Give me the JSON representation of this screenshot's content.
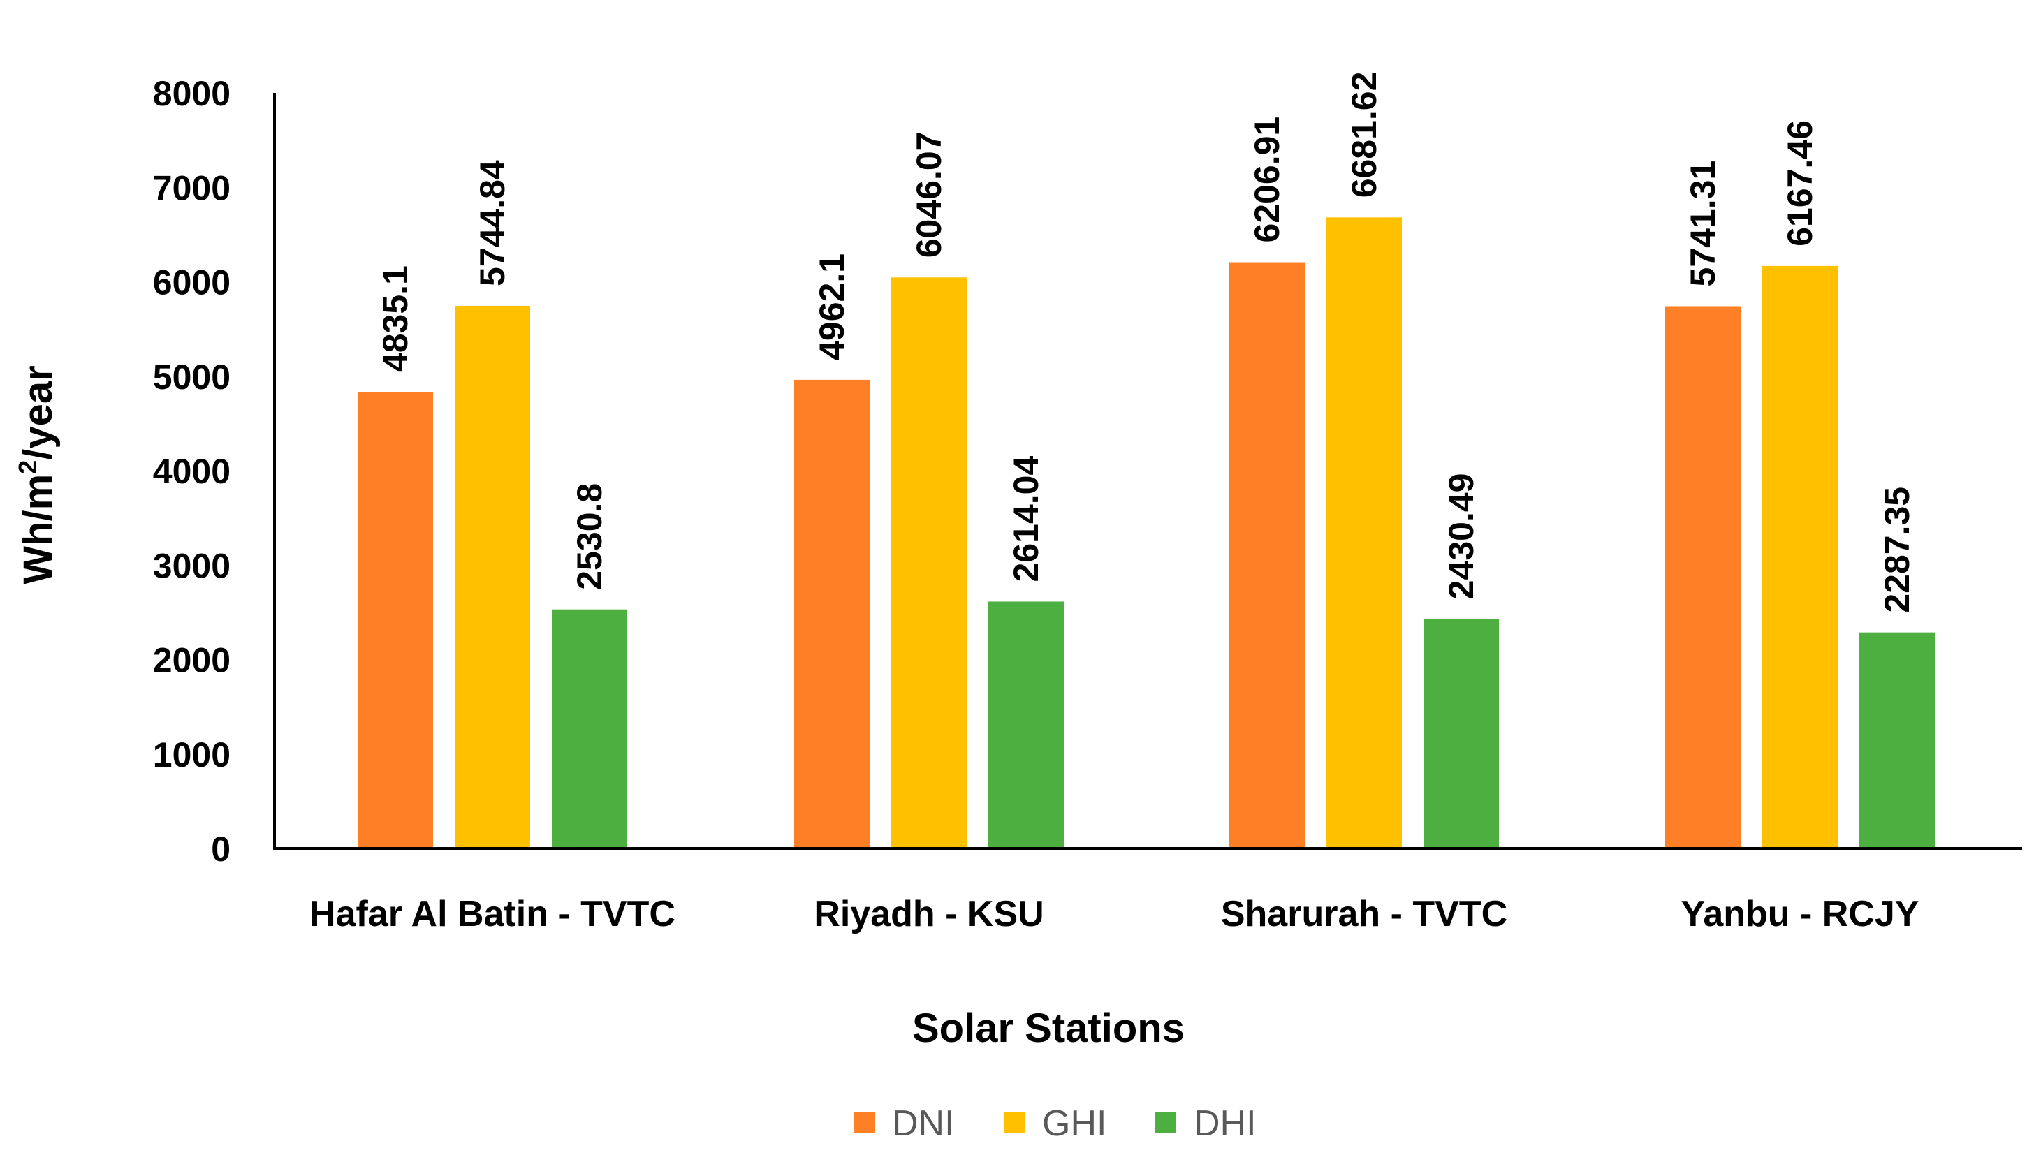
{
  "chart_data": {
    "type": "bar",
    "title": "",
    "xlabel": "Solar Stations",
    "ylabel_main": "Wh/m",
    "ylabel_sup": "2",
    "ylabel_rest": "/year",
    "ylim": [
      0,
      8000
    ],
    "yticks": [
      "0",
      "1000",
      "2000",
      "3000",
      "4000",
      "5000",
      "6000",
      "7000",
      "8000"
    ],
    "grid": false,
    "legend_position": "bottom",
    "categories": [
      "Hafar Al Batin - TVTC",
      "Riyadh - KSU",
      "Sharurah - TVTC",
      "Yanbu - RCJY"
    ],
    "series": [
      {
        "name": "DNI",
        "color": "#FF7F27",
        "values": [
          4835.1,
          4962.1,
          6206.91,
          5741.31
        ],
        "labels": [
          "4835.1",
          "4962.1",
          "6206.91",
          "5741.31"
        ]
      },
      {
        "name": "GHI",
        "color": "#FFC000",
        "values": [
          5744.84,
          6046.07,
          6681.62,
          6167.46
        ],
        "labels": [
          "5744.84",
          "6046.07",
          "6681.62",
          "6167.46"
        ]
      },
      {
        "name": "DHI",
        "color": "#4CAF3F",
        "values": [
          2530.8,
          2614.04,
          2430.49,
          2287.35
        ],
        "labels": [
          "2530.8",
          "2614.04",
          "2430.49",
          "2287.35"
        ]
      }
    ]
  }
}
